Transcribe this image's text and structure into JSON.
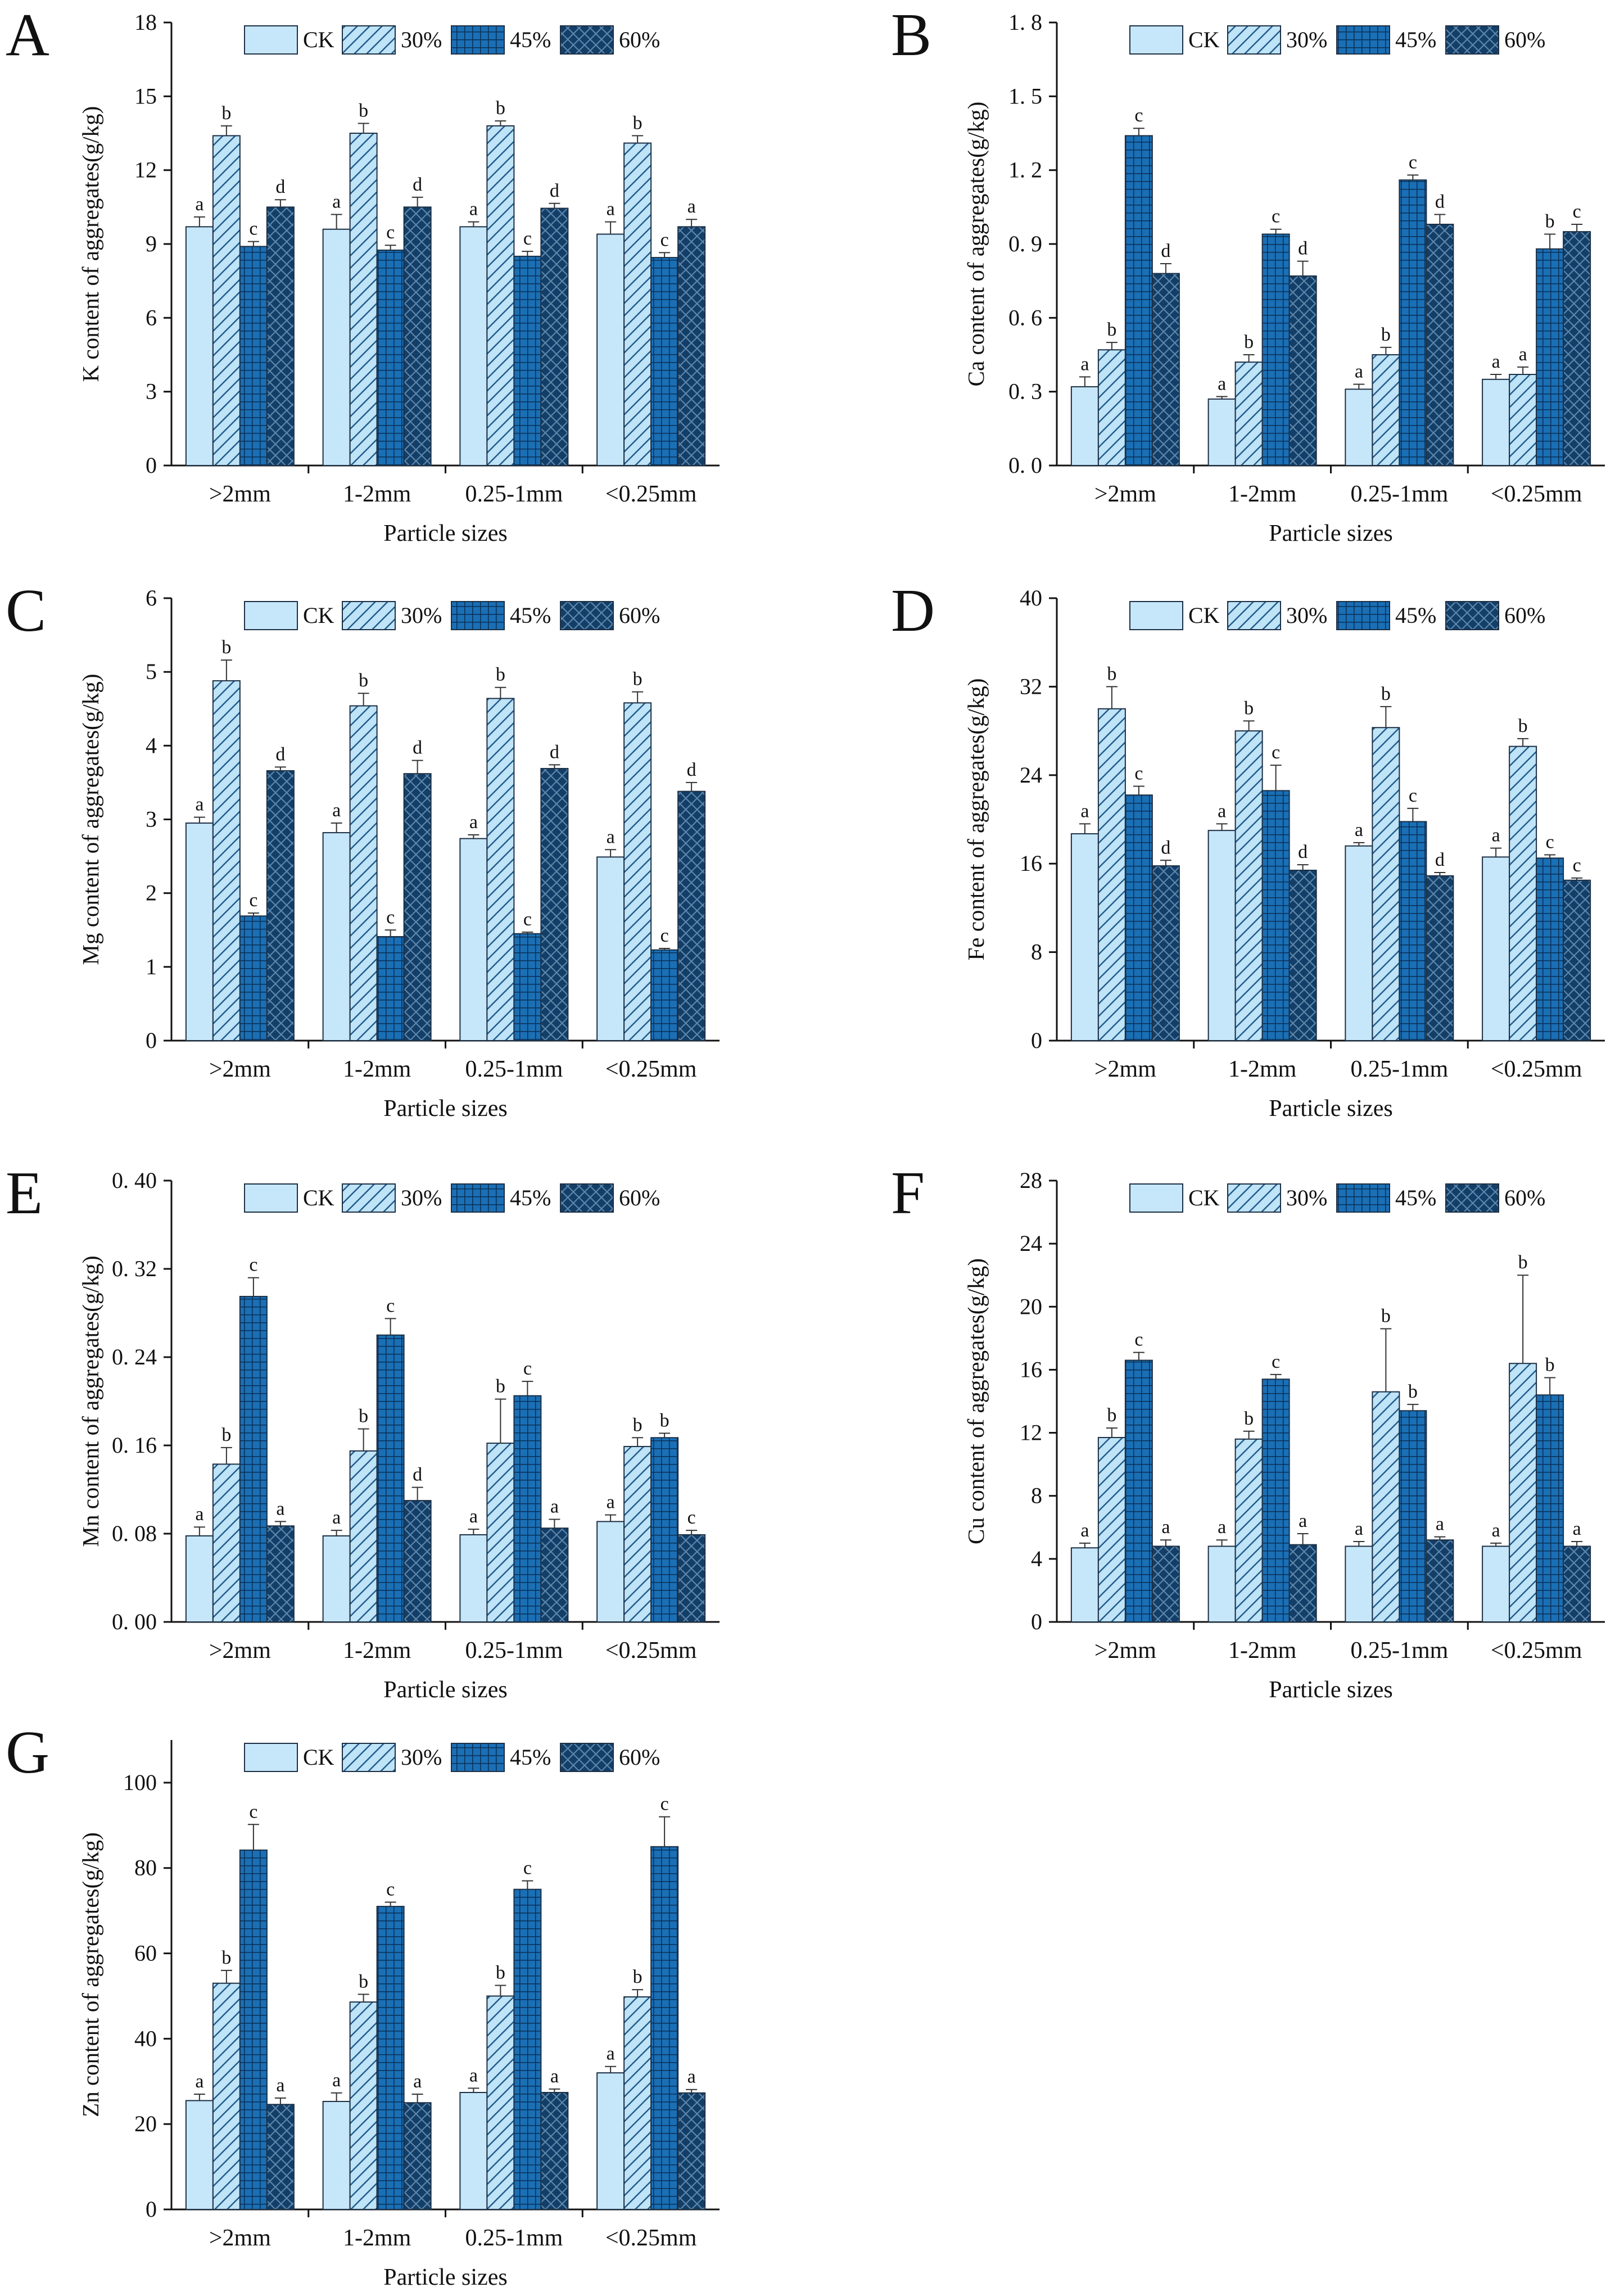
{
  "figure": {
    "legend_labels": [
      "CK",
      "30%",
      "45%",
      "60%"
    ]
  },
  "chart_data": [
    {
      "type": "bar",
      "panel": "A",
      "ylabel": "K content of aggregates(g/kg)",
      "xlabel": "Particle sizes",
      "categories": [
        ">2mm",
        "1-2mm",
        "0.25-1mm",
        "<0.25mm"
      ],
      "ylim": [
        0,
        18
      ],
      "yticks": [
        "0",
        "3",
        "6",
        "9",
        "12",
        "15",
        "18"
      ],
      "ytick_values": [
        0,
        3,
        6,
        9,
        12,
        15,
        18
      ],
      "series": [
        {
          "name": "CK",
          "values": [
            9.7,
            9.6,
            9.7,
            9.4
          ],
          "errors": [
            0.4,
            0.6,
            0.2,
            0.5
          ],
          "letters": [
            "a",
            "a",
            "a",
            "a"
          ]
        },
        {
          "name": "30%",
          "values": [
            13.4,
            13.5,
            13.8,
            13.1
          ],
          "errors": [
            0.4,
            0.4,
            0.2,
            0.3
          ],
          "letters": [
            "b",
            "b",
            "b",
            "b"
          ]
        },
        {
          "name": "45%",
          "values": [
            8.9,
            8.75,
            8.5,
            8.45
          ],
          "errors": [
            0.2,
            0.2,
            0.2,
            0.2
          ],
          "letters": [
            "c",
            "c",
            "c",
            "c"
          ]
        },
        {
          "name": "60%",
          "values": [
            10.5,
            10.5,
            10.45,
            9.7
          ],
          "errors": [
            0.3,
            0.4,
            0.2,
            0.3
          ],
          "letters": [
            "d",
            "d",
            "d",
            "a"
          ]
        }
      ]
    },
    {
      "type": "bar",
      "panel": "B",
      "ylabel": "Ca content of aggregates(g/kg)",
      "xlabel": "Particle sizes",
      "categories": [
        ">2mm",
        "1-2mm",
        "0.25-1mm",
        "<0.25mm"
      ],
      "ylim": [
        0,
        1.8
      ],
      "yticks": [
        "0. 0",
        "0. 3",
        "0. 6",
        "0. 9",
        "1. 2",
        "1. 5",
        "1. 8"
      ],
      "ytick_values": [
        0,
        0.3,
        0.6,
        0.9,
        1.2,
        1.5,
        1.8
      ],
      "series": [
        {
          "name": "CK",
          "values": [
            0.32,
            0.27,
            0.31,
            0.35
          ],
          "errors": [
            0.04,
            0.01,
            0.02,
            0.02
          ],
          "letters": [
            "a",
            "a",
            "a",
            "a"
          ]
        },
        {
          "name": "30%",
          "values": [
            0.47,
            0.42,
            0.45,
            0.37
          ],
          "errors": [
            0.03,
            0.03,
            0.03,
            0.03
          ],
          "letters": [
            "b",
            "b",
            "b",
            "a"
          ]
        },
        {
          "name": "45%",
          "values": [
            1.34,
            0.94,
            1.16,
            0.88
          ],
          "errors": [
            0.03,
            0.02,
            0.02,
            0.06
          ],
          "letters": [
            "c",
            "c",
            "c",
            "b"
          ]
        },
        {
          "name": "60%",
          "values": [
            0.78,
            0.77,
            0.98,
            0.95
          ],
          "errors": [
            0.04,
            0.06,
            0.04,
            0.03
          ],
          "letters": [
            "d",
            "d",
            "d",
            "c"
          ]
        }
      ]
    },
    {
      "type": "bar",
      "panel": "C",
      "ylabel": "Mg content of aggregates(g/kg)",
      "xlabel": "Particle sizes",
      "categories": [
        ">2mm",
        "1-2mm",
        "0.25-1mm",
        "<0.25mm"
      ],
      "ylim": [
        0,
        6
      ],
      "yticks": [
        "0",
        "1",
        "2",
        "3",
        "4",
        "5",
        "6"
      ],
      "ytick_values": [
        0,
        1,
        2,
        3,
        4,
        5,
        6
      ],
      "series": [
        {
          "name": "CK",
          "values": [
            2.95,
            2.82,
            2.74,
            2.49
          ],
          "errors": [
            0.08,
            0.13,
            0.05,
            0.1
          ],
          "letters": [
            "a",
            "a",
            "a",
            "a"
          ]
        },
        {
          "name": "30%",
          "values": [
            4.88,
            4.54,
            4.64,
            4.58
          ],
          "errors": [
            0.28,
            0.17,
            0.15,
            0.15
          ],
          "letters": [
            "b",
            "b",
            "b",
            "b"
          ]
        },
        {
          "name": "45%",
          "values": [
            1.69,
            1.41,
            1.45,
            1.23
          ],
          "errors": [
            0.04,
            0.09,
            0.02,
            0.02
          ],
          "letters": [
            "c",
            "c",
            "c",
            "c"
          ]
        },
        {
          "name": "60%",
          "values": [
            3.66,
            3.62,
            3.69,
            3.38
          ],
          "errors": [
            0.05,
            0.18,
            0.05,
            0.12
          ],
          "letters": [
            "d",
            "d",
            "d",
            "d"
          ]
        }
      ]
    },
    {
      "type": "bar",
      "panel": "D",
      "ylabel": "Fe content of aggregates(g/kg)",
      "xlabel": "Particle sizes",
      "categories": [
        ">2mm",
        "1-2mm",
        "0.25-1mm",
        "<0.25mm"
      ],
      "ylim": [
        0,
        40
      ],
      "yticks": [
        "0",
        "8",
        "16",
        "24",
        "32",
        "40"
      ],
      "ytick_values": [
        0,
        8,
        16,
        24,
        32,
        40
      ],
      "series": [
        {
          "name": "CK",
          "values": [
            18.7,
            19.0,
            17.6,
            16.6
          ],
          "errors": [
            0.9,
            0.6,
            0.3,
            0.8
          ],
          "letters": [
            "a",
            "a",
            "a",
            "a"
          ]
        },
        {
          "name": "30%",
          "values": [
            30.0,
            28.0,
            28.3,
            26.6
          ],
          "errors": [
            2.0,
            0.9,
            1.9,
            0.7
          ],
          "letters": [
            "b",
            "b",
            "b",
            "b"
          ]
        },
        {
          "name": "45%",
          "values": [
            22.2,
            22.6,
            19.8,
            16.5
          ],
          "errors": [
            0.8,
            2.3,
            1.2,
            0.3
          ],
          "letters": [
            "c",
            "c",
            "c",
            "c"
          ]
        },
        {
          "name": "60%",
          "values": [
            15.8,
            15.4,
            14.9,
            14.5
          ],
          "errors": [
            0.5,
            0.5,
            0.3,
            0.2
          ],
          "letters": [
            "d",
            "d",
            "d",
            "c"
          ]
        }
      ]
    },
    {
      "type": "bar",
      "panel": "E",
      "ylabel": "Mn content of aggregates(g/kg)",
      "xlabel": "Particle sizes",
      "categories": [
        ">2mm",
        "1-2mm",
        "0.25-1mm",
        "<0.25mm"
      ],
      "ylim": [
        0,
        0.4
      ],
      "yticks": [
        "0. 00",
        "0. 08",
        "0. 16",
        "0. 24",
        "0. 32",
        "0. 40"
      ],
      "ytick_values": [
        0,
        0.08,
        0.16,
        0.24,
        0.32,
        0.4
      ],
      "series": [
        {
          "name": "CK",
          "values": [
            0.078,
            0.078,
            0.079,
            0.091
          ],
          "errors": [
            0.008,
            0.005,
            0.005,
            0.006
          ],
          "letters": [
            "a",
            "a",
            "a",
            "a"
          ]
        },
        {
          "name": "30%",
          "values": [
            0.143,
            0.155,
            0.162,
            0.159
          ],
          "errors": [
            0.015,
            0.02,
            0.04,
            0.008
          ],
          "letters": [
            "b",
            "b",
            "b",
            "b"
          ]
        },
        {
          "name": "45%",
          "values": [
            0.295,
            0.26,
            0.205,
            0.167
          ],
          "errors": [
            0.017,
            0.015,
            0.013,
            0.004
          ],
          "letters": [
            "c",
            "c",
            "c",
            "b"
          ]
        },
        {
          "name": "60%",
          "values": [
            0.087,
            0.11,
            0.085,
            0.079
          ],
          "errors": [
            0.004,
            0.012,
            0.008,
            0.004
          ],
          "letters": [
            "a",
            "d",
            "a",
            "c"
          ]
        }
      ]
    },
    {
      "type": "bar",
      "panel": "F",
      "ylabel": "Cu content of aggregates(g/kg)",
      "xlabel": "Particle sizes",
      "categories": [
        ">2mm",
        "1-2mm",
        "0.25-1mm",
        "<0.25mm"
      ],
      "ylim": [
        0,
        28
      ],
      "yticks": [
        "0",
        "4",
        "8",
        "12",
        "16",
        "20",
        "24",
        "28"
      ],
      "ytick_values": [
        0,
        4,
        8,
        12,
        16,
        20,
        24,
        28
      ],
      "series": [
        {
          "name": "CK",
          "values": [
            4.7,
            4.8,
            4.8,
            4.8
          ],
          "errors": [
            0.3,
            0.4,
            0.3,
            0.2
          ],
          "letters": [
            "a",
            "a",
            "a",
            "a"
          ]
        },
        {
          "name": "30%",
          "values": [
            11.7,
            11.6,
            14.6,
            16.4
          ],
          "errors": [
            0.6,
            0.5,
            4.0,
            5.6
          ],
          "letters": [
            "b",
            "b",
            "b",
            "b"
          ]
        },
        {
          "name": "45%",
          "values": [
            16.6,
            15.4,
            13.4,
            14.4
          ],
          "errors": [
            0.5,
            0.3,
            0.4,
            1.1
          ],
          "letters": [
            "c",
            "c",
            "b",
            "b"
          ]
        },
        {
          "name": "60%",
          "values": [
            4.8,
            4.9,
            5.2,
            4.8
          ],
          "errors": [
            0.4,
            0.7,
            0.2,
            0.3
          ],
          "letters": [
            "a",
            "a",
            "a",
            "a"
          ]
        }
      ]
    },
    {
      "type": "bar",
      "panel": "G",
      "ylabel": "Zn content of aggregates(g/kg)",
      "xlabel": "Particle sizes",
      "categories": [
        ">2mm",
        "1-2mm",
        "0.25-1mm",
        "<0.25mm"
      ],
      "ylim": [
        0,
        110
      ],
      "yticks": [
        "0",
        "20",
        "40",
        "60",
        "80",
        "100"
      ],
      "ytick_values": [
        0,
        20,
        40,
        60,
        80,
        100
      ],
      "series": [
        {
          "name": "CK",
          "values": [
            25.5,
            25.3,
            27.4,
            32.0
          ],
          "errors": [
            1.5,
            2.0,
            1.0,
            1.5
          ],
          "letters": [
            "a",
            "a",
            "a",
            "a"
          ]
        },
        {
          "name": "30%",
          "values": [
            53.0,
            48.6,
            50.0,
            49.8
          ],
          "errors": [
            3.0,
            1.8,
            2.5,
            1.7
          ],
          "letters": [
            "b",
            "b",
            "b",
            "b"
          ]
        },
        {
          "name": "45%",
          "values": [
            84.2,
            71.0,
            75.0,
            85.0
          ],
          "errors": [
            6.0,
            1.0,
            2.0,
            7.0
          ],
          "letters": [
            "c",
            "c",
            "c",
            "c"
          ]
        },
        {
          "name": "60%",
          "values": [
            24.6,
            25.0,
            27.4,
            27.3
          ],
          "errors": [
            1.5,
            2.0,
            0.8,
            0.8
          ],
          "letters": [
            "a",
            "a",
            "a",
            "a"
          ]
        }
      ]
    }
  ]
}
